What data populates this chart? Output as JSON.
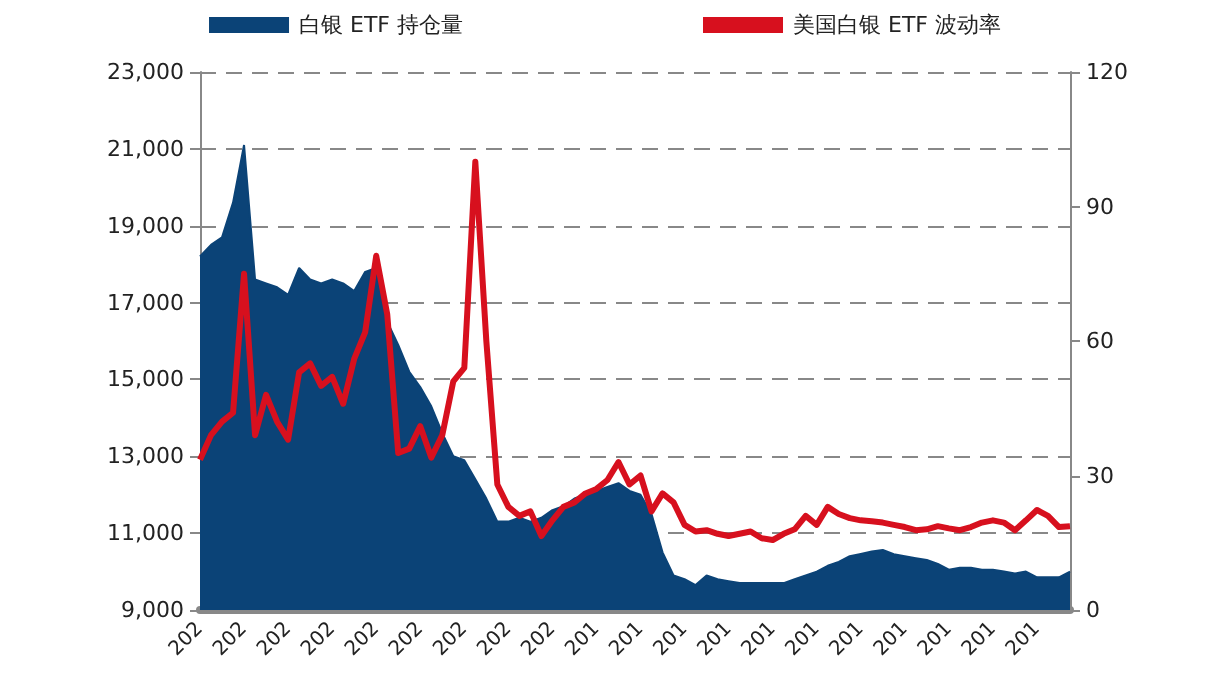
{
  "chart_data": {
    "type": "area",
    "categories": [
      "202",
      null,
      null,
      null,
      "202",
      null,
      null,
      null,
      "202",
      null,
      null,
      null,
      "202",
      null,
      null,
      null,
      "202",
      null,
      null,
      null,
      "202",
      null,
      null,
      null,
      "202",
      null,
      null,
      null,
      "202",
      null,
      null,
      null,
      "202",
      null,
      null,
      null,
      "201",
      null,
      null,
      null,
      "201",
      null,
      null,
      null,
      "201",
      null,
      null,
      null,
      "201",
      null,
      null,
      null,
      "201",
      null,
      null,
      null,
      "201",
      null,
      null,
      null,
      "201",
      null,
      null,
      null,
      "201",
      null,
      null,
      null,
      "201",
      null,
      null,
      null,
      "201",
      null,
      null,
      null,
      "201",
      null,
      null,
      null
    ],
    "series": [
      {
        "name": "白银 ETF 持仓量",
        "color": "#0b4377",
        "values": [
          18200,
          18500,
          18700,
          19600,
          21100,
          17600,
          17500,
          17400,
          17200,
          17900,
          17600,
          17500,
          17600,
          17500,
          17300,
          17800,
          17900,
          16500,
          15900,
          15200,
          14800,
          14300,
          13600,
          13000,
          12900,
          12400,
          11900,
          11300,
          11300,
          11400,
          11300,
          11400,
          11600,
          11700,
          11900,
          12000,
          12100,
          12200,
          12300,
          12100,
          12000,
          11500,
          10500,
          9900,
          9800,
          9650,
          9900,
          9800,
          9750,
          9700,
          9700,
          9700,
          9700,
          9700,
          9800,
          9900,
          10000,
          10150,
          10250,
          10400,
          10460,
          10520,
          10560,
          10450,
          10400,
          10350,
          10300,
          10200,
          10050,
          10100,
          10100,
          10050,
          10050,
          10000,
          9950,
          10000,
          9850,
          9850,
          9850,
          10000
        ]
      },
      {
        "name": "美国白银 ETF 波动率",
        "type": "line",
        "axis": "y2",
        "color": "#d7101e",
        "values": [
          33.5,
          39,
          42,
          44,
          75,
          39,
          48,
          42,
          38,
          53,
          55,
          50,
          52,
          46,
          56,
          62,
          79,
          66,
          35,
          36,
          41,
          34,
          39,
          51,
          54,
          100,
          60,
          28,
          23,
          21,
          22,
          16.5,
          20,
          23,
          24,
          26,
          27,
          29,
          33,
          28,
          30,
          22,
          26,
          24,
          19,
          17.5,
          17.8,
          17,
          16.5,
          17,
          17.5,
          16,
          15.6,
          17,
          18,
          21,
          19,
          23,
          21.4,
          20.5,
          20,
          19.8,
          19.5,
          19,
          18.5,
          17.8,
          18,
          18.7,
          18.2,
          17.8,
          18.5,
          19.5,
          20,
          19.5,
          17.8,
          20,
          22.3,
          21,
          18.5,
          18.7
        ]
      }
    ],
    "ylim": [
      9000,
      23000
    ],
    "yticks": [
      {
        "value": 9000,
        "label": "9,000"
      },
      {
        "value": 11000,
        "label": "11,000"
      },
      {
        "value": 13000,
        "label": "13,000"
      },
      {
        "value": 15000,
        "label": "15,000"
      },
      {
        "value": 17000,
        "label": "17,000"
      },
      {
        "value": 19000,
        "label": "19,000"
      },
      {
        "value": 21000,
        "label": "21,000"
      },
      {
        "value": 23000,
        "label": "23,000"
      }
    ],
    "y2lim": [
      0,
      120
    ],
    "y2ticks": [
      0,
      30,
      60,
      90,
      120
    ],
    "grid": "y",
    "legend": "top"
  }
}
